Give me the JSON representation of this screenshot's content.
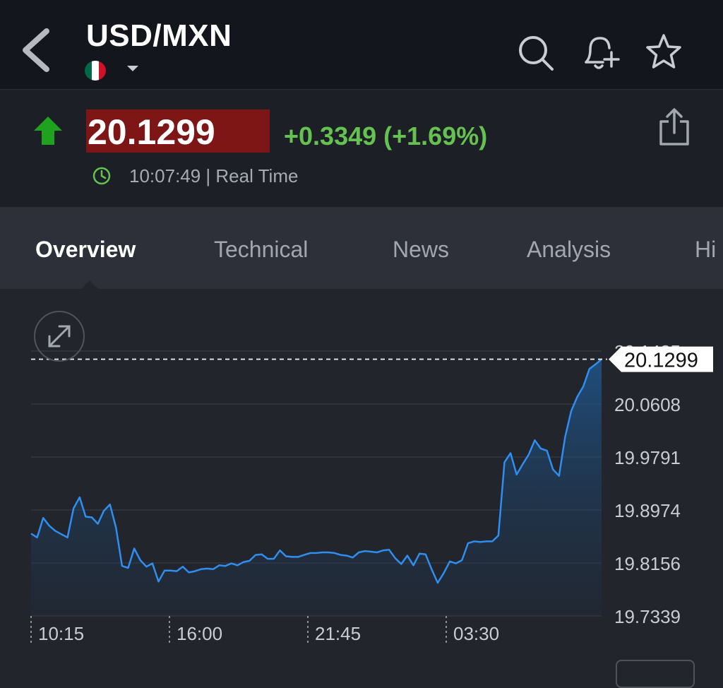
{
  "header": {
    "title": "USD/MXN",
    "flag_colors": [
      "#006847",
      "#ffffff",
      "#ce1126"
    ],
    "icons": [
      "back-icon",
      "search-icon",
      "add-alert-bell-icon",
      "star-icon"
    ]
  },
  "quote": {
    "price": "20.1299",
    "change": "+0.3349 (+1.69%)",
    "time": "10:07:49 | Real Time",
    "direction": "up",
    "price_bg": "#7e1616",
    "up_color": "#66c250",
    "arrow_color": "#1fa31f"
  },
  "tabs": [
    {
      "label": "Overview",
      "active": true
    },
    {
      "label": "Technical",
      "active": false
    },
    {
      "label": "News",
      "active": false
    },
    {
      "label": "Analysis",
      "active": false
    },
    {
      "label": "Hi",
      "active": false
    }
  ],
  "chart_data": {
    "type": "area",
    "x_tick_labels": [
      "10:15",
      "16:00",
      "21:45",
      "03:30"
    ],
    "y_tick_labels": [
      "20.1425",
      "20.0608",
      "19.9791",
      "19.8974",
      "19.8156",
      "19.7339"
    ],
    "ylim": [
      19.7339,
      20.1425
    ],
    "current_value_label": "20.1299",
    "current_value": 20.1299,
    "line_color": "#2f8ef0",
    "grid": true,
    "series": [
      {
        "values": [
          19.861,
          19.855,
          19.885,
          19.873,
          19.865,
          19.86,
          19.855,
          19.9,
          19.917,
          19.887,
          19.886,
          19.876,
          19.896,
          19.906,
          19.87,
          19.811,
          19.808,
          19.838,
          19.82,
          19.81,
          19.815,
          19.787,
          19.804,
          19.804,
          19.803,
          19.81,
          19.801,
          19.803,
          19.806,
          19.807,
          19.806,
          19.812,
          19.811,
          19.815,
          19.812,
          19.817,
          19.819,
          19.828,
          19.829,
          19.822,
          19.822,
          19.835,
          19.826,
          19.825,
          19.825,
          19.828,
          19.831,
          19.831,
          19.832,
          19.832,
          19.831,
          19.828,
          19.827,
          19.824,
          19.832,
          19.834,
          19.833,
          19.832,
          19.835,
          19.836,
          19.823,
          19.814,
          19.827,
          19.812,
          19.83,
          19.829,
          19.806,
          19.785,
          19.8,
          19.818,
          19.815,
          19.82,
          19.846,
          19.849,
          19.848,
          19.849,
          19.849,
          19.858,
          19.971,
          19.985,
          19.952,
          19.968,
          19.983,
          20.005,
          19.992,
          19.989,
          19.96,
          19.95,
          20.01,
          20.05,
          20.072,
          20.088,
          20.115,
          20.122,
          20.1299
        ]
      }
    ]
  }
}
